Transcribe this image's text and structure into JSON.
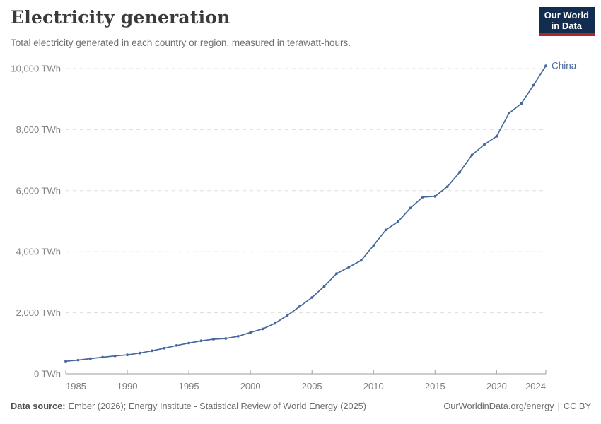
{
  "header": {
    "title": "Electricity generation",
    "subtitle": "Total electricity generated in each country or region, measured in terawatt-hours.",
    "logo": {
      "line1": "Our World",
      "line2": "in Data",
      "bg_color": "#122d50",
      "accent_color": "#ad2a23"
    }
  },
  "footer": {
    "source_label": "Data source:",
    "source_text": "Ember (2026); Energy Institute - Statistical Review of World Energy (2025)",
    "link_text": "OurWorldinData.org/energy",
    "separator": "|",
    "license_text": "CC BY"
  },
  "chart_data": {
    "type": "line",
    "title": "Electricity generation",
    "unit": "TWh",
    "xlim": [
      1985,
      2024
    ],
    "ylim": [
      0,
      10000
    ],
    "x_ticks": [
      1985,
      1990,
      1995,
      2000,
      2005,
      2010,
      2015,
      2020,
      2024
    ],
    "y_ticks": [
      0,
      2000,
      4000,
      6000,
      8000,
      10000
    ],
    "y_tick_suffix": " TWh",
    "grid": "horizontal-dashed",
    "legend_position": "end-of-line-label",
    "colors": {
      "line": "#46689e",
      "gridline": "#dedede",
      "axis": "#9e9e9e",
      "tick_label": "#7e7e7e"
    },
    "series": [
      {
        "name": "China",
        "color": "#46689e",
        "x": [
          1985,
          1986,
          1987,
          1988,
          1989,
          1990,
          1991,
          1992,
          1993,
          1994,
          1995,
          1996,
          1997,
          1998,
          1999,
          2000,
          2001,
          2002,
          2003,
          2004,
          2005,
          2006,
          2007,
          2008,
          2009,
          2010,
          2011,
          2012,
          2013,
          2014,
          2015,
          2016,
          2017,
          2018,
          2019,
          2020,
          2021,
          2022,
          2023,
          2024
        ],
        "values": [
          411,
          450,
          497,
          545,
          585,
          621,
          678,
          754,
          839,
          928,
          1007,
          1081,
          1134,
          1157,
          1229,
          1356,
          1472,
          1654,
          1911,
          2203,
          2500,
          2866,
          3282,
          3495,
          3715,
          4207,
          4713,
          4988,
          5432,
          5790,
          5815,
          6133,
          6604,
          7166,
          7509,
          7779,
          8534,
          8849,
          9456,
          10087
        ]
      }
    ]
  }
}
